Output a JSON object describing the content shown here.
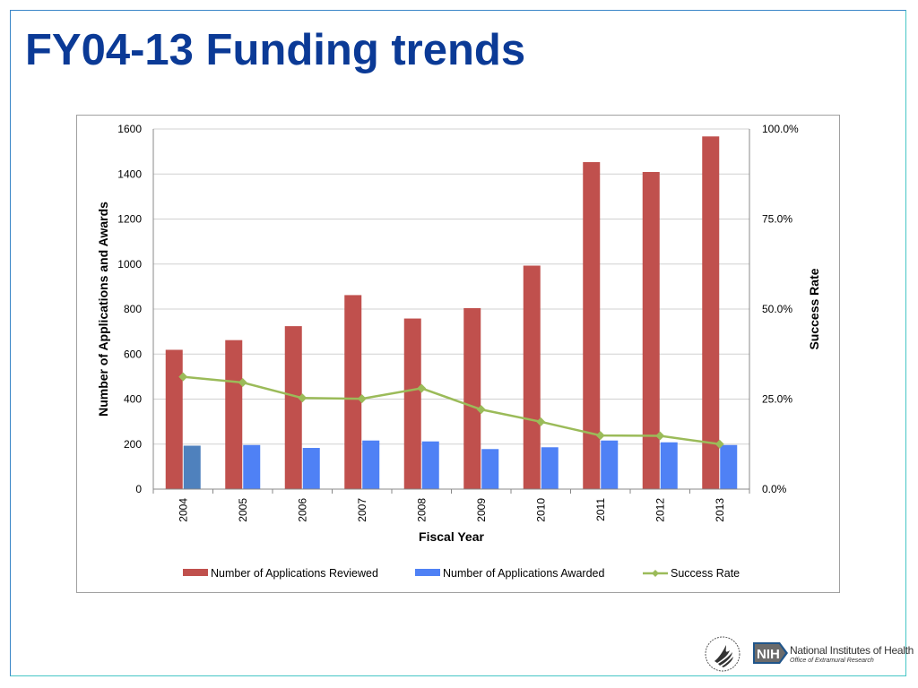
{
  "slide": {
    "title": "FY04-13 Funding trends"
  },
  "footer": {
    "nih_org_name": "National Institutes of Health",
    "nih_office": "Office of Extramural Research",
    "nih_badge": "NIH"
  },
  "colors": {
    "title": "#0b3a96",
    "reviewed": "#c0504d",
    "awarded": "#4f81f5",
    "awarded_first": "#4f81bd",
    "success_rate": "#9bbb59",
    "grid": "#d0d0d0"
  },
  "chart_data": {
    "type": "bar",
    "title": "",
    "xlabel": "Fiscal Year",
    "ylabel": "Number of Applications and Awards",
    "y2label": "Success Rate",
    "ylim": [
      0,
      1600
    ],
    "y_ticks": [
      "0",
      "200",
      "400",
      "600",
      "800",
      "1000",
      "1200",
      "1400",
      "1600"
    ],
    "y2lim": [
      0,
      100
    ],
    "y2_ticks": [
      "0.0%",
      "25.0%",
      "50.0%",
      "75.0%",
      "100.0%"
    ],
    "grid": true,
    "legend_position": "bottom",
    "categories": [
      "2004",
      "2005",
      "2006",
      "2007",
      "2008",
      "2009",
      "2010",
      "2011",
      "2012",
      "2013"
    ],
    "series": [
      {
        "name": "Number of Applications Reviewed",
        "type": "bar",
        "axis": "left",
        "values": [
          619,
          662,
          724,
          862,
          758,
          804,
          993,
          1453,
          1409,
          1567
        ]
      },
      {
        "name": "Number of Applications Awarded",
        "type": "bar",
        "axis": "left",
        "values": [
          193,
          196,
          183,
          216,
          212,
          178,
          186,
          216,
          208,
          196
        ]
      },
      {
        "name": "Success Rate",
        "type": "line",
        "axis": "right",
        "unit": "%",
        "values": [
          31.2,
          29.6,
          25.3,
          25.1,
          28.0,
          22.1,
          18.7,
          14.9,
          14.8,
          12.5
        ]
      }
    ]
  }
}
